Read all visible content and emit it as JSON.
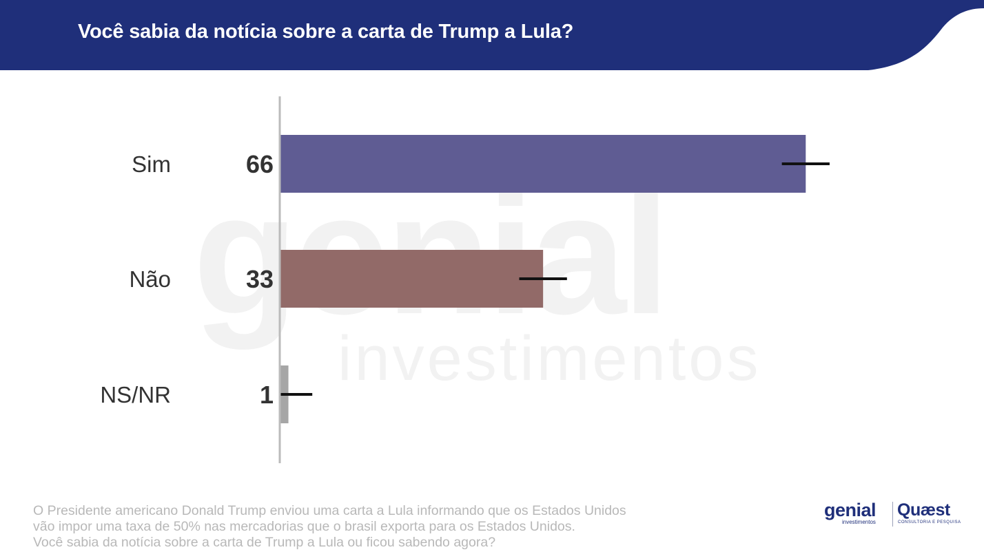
{
  "header": {
    "title": "Você sabia da notícia sobre a carta de Trump a Lula?",
    "background_color": "#1f2f7a"
  },
  "watermark": {
    "word": "genial",
    "sub": "investimentos"
  },
  "chart_data": {
    "type": "bar",
    "orientation": "horizontal",
    "categories": [
      "Sim",
      "Não",
      "NS/NR"
    ],
    "values": [
      66,
      33,
      1
    ],
    "error_margin": 3,
    "colors": [
      "#5f5c93",
      "#926a68",
      "#a6a6a6"
    ],
    "xlim": [
      0,
      100
    ],
    "grid": false,
    "value_labels": true
  },
  "footnote": {
    "lines": [
      "O Presidente americano Donald Trump enviou uma carta a Lula informando que os Estados Unidos",
      "vão impor uma taxa de 50% nas mercadorias que o brasil exporta para os Estados Unidos.",
      "Você sabia da notícia sobre a carta de Trump a Lula ou ficou sabendo agora?"
    ]
  },
  "logos": {
    "genial": "genial",
    "genial_sub": "investimentos",
    "quaest": "Quæst",
    "quaest_sub": "CONSULTORIA E PESQUISA"
  }
}
